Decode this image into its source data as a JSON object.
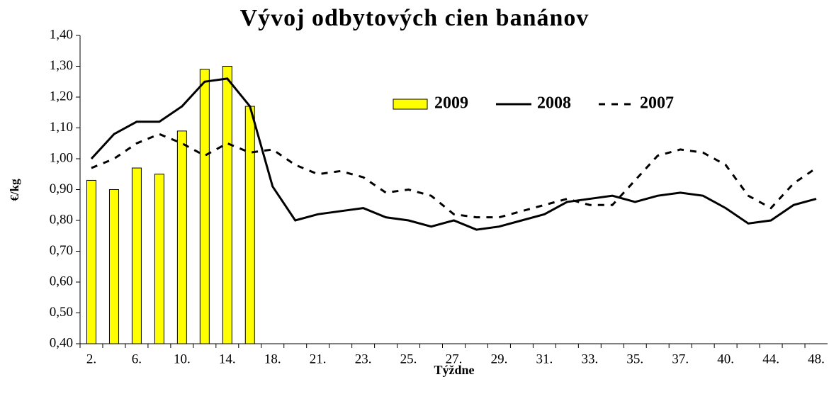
{
  "chart_data": {
    "type": "bar",
    "title": "Vývoj odbytových cien banánov",
    "x_label": "Týždne",
    "y_label": "€/kg",
    "categories": [
      "2.",
      null,
      "6.",
      null,
      "10.",
      null,
      "14.",
      null,
      "18.",
      null,
      "21.",
      null,
      "23.",
      null,
      "25.",
      null,
      "27.",
      null,
      "29.",
      null,
      "31.",
      null,
      "33.",
      null,
      "35.",
      null,
      "37.",
      null,
      "40.",
      null,
      "44.",
      null,
      "48."
    ],
    "series": [
      {
        "name": "2009",
        "type": "bar",
        "color": "#ffff00",
        "values": [
          0.93,
          0.9,
          0.97,
          0.95,
          1.09,
          1.29,
          1.3,
          1.17,
          null,
          null,
          null,
          null,
          null,
          null,
          null,
          null,
          null,
          null,
          null,
          null,
          null,
          null,
          null,
          null,
          null,
          null,
          null,
          null,
          null,
          null,
          null,
          null,
          null
        ]
      },
      {
        "name": "2008",
        "type": "line",
        "color": "#000000",
        "line_style": "solid",
        "values": [
          1.0,
          1.08,
          1.12,
          1.12,
          1.17,
          1.25,
          1.26,
          1.17,
          0.91,
          0.8,
          0.82,
          0.83,
          0.84,
          0.81,
          0.8,
          0.78,
          0.8,
          0.77,
          0.78,
          0.8,
          0.82,
          0.86,
          0.87,
          0.88,
          0.86,
          0.88,
          0.89,
          0.88,
          0.84,
          0.79,
          0.8,
          0.85,
          0.87
        ]
      },
      {
        "name": "2007",
        "type": "line",
        "color": "#000000",
        "line_style": "dashed",
        "values": [
          0.97,
          1.0,
          1.05,
          1.08,
          1.05,
          1.01,
          1.05,
          1.02,
          1.03,
          0.98,
          0.95,
          0.96,
          0.94,
          0.89,
          0.9,
          0.88,
          0.82,
          0.81,
          0.81,
          0.83,
          0.85,
          0.87,
          0.85,
          0.85,
          0.93,
          1.01,
          1.03,
          1.02,
          0.98,
          0.88,
          0.84,
          0.92,
          0.97
        ]
      }
    ],
    "ylim": [
      0.4,
      1.4
    ],
    "yticks": [
      {
        "value": 0.4,
        "label": "0,40"
      },
      {
        "value": 0.5,
        "label": "0,50"
      },
      {
        "value": 0.6,
        "label": "0,60"
      },
      {
        "value": 0.7,
        "label": "0,70"
      },
      {
        "value": 0.8,
        "label": "0,80"
      },
      {
        "value": 0.9,
        "label": "0,90"
      },
      {
        "value": 1.0,
        "label": "1,00"
      },
      {
        "value": 1.1,
        "label": "1,10"
      },
      {
        "value": 1.2,
        "label": "1,20"
      },
      {
        "value": 1.3,
        "label": "1,30"
      },
      {
        "value": 1.4,
        "label": "1,40"
      }
    ],
    "grid": false,
    "legend": "upper right"
  }
}
